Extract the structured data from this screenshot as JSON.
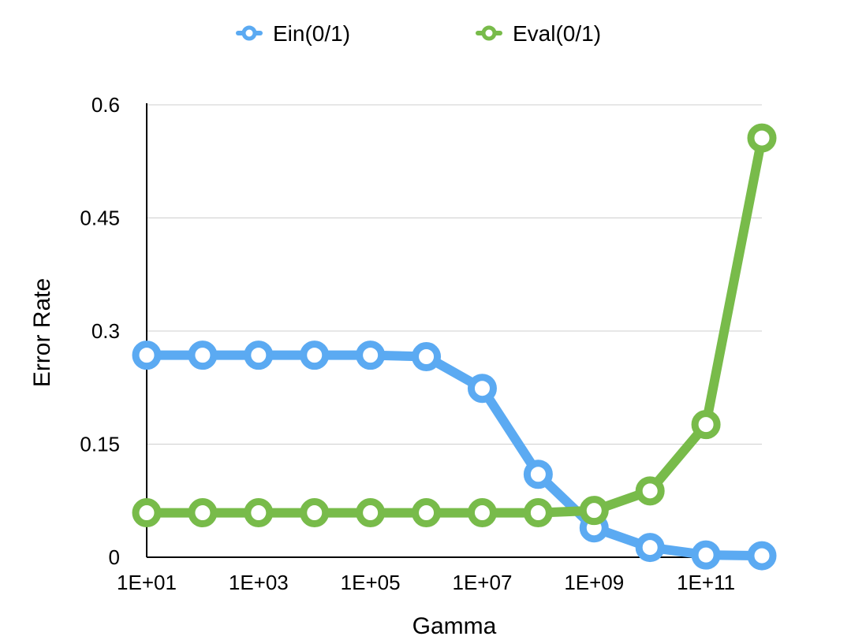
{
  "chart_data": {
    "type": "line",
    "title": "",
    "xlabel": "Gamma",
    "ylabel": "Error Rate",
    "x_tick_labels": [
      "1E+01",
      "1E+03",
      "1E+05",
      "1E+07",
      "1E+09",
      "1E+11"
    ],
    "x_tick_values": [
      10,
      1000,
      100000,
      10000000,
      1000000000,
      100000000000
    ],
    "x_scale": "log",
    "x": [
      10,
      100,
      1000,
      10000,
      100000,
      1000000,
      10000000,
      100000000,
      1000000000,
      10000000000,
      100000000000,
      1000000000000
    ],
    "xlim": [
      10,
      1000000000000
    ],
    "y_tick_labels": [
      "0",
      "0.15",
      "0.3",
      "0.45",
      "0.6"
    ],
    "y_tick_values": [
      0,
      0.15,
      0.3,
      0.45,
      0.6
    ],
    "ylim": [
      0,
      0.6
    ],
    "grid": "horizontal",
    "legend_position": "top-center",
    "series": [
      {
        "name": "Ein(0/1)",
        "color": "#5baaf2",
        "values": [
          0.268,
          0.268,
          0.268,
          0.268,
          0.268,
          0.266,
          0.224,
          0.11,
          0.039,
          0.013,
          0.003,
          0.002
        ]
      },
      {
        "name": "Eval(0/1)",
        "color": "#78bb4a",
        "values": [
          0.059,
          0.059,
          0.059,
          0.059,
          0.059,
          0.059,
          0.059,
          0.059,
          0.062,
          0.088,
          0.176,
          0.556
        ]
      }
    ]
  }
}
